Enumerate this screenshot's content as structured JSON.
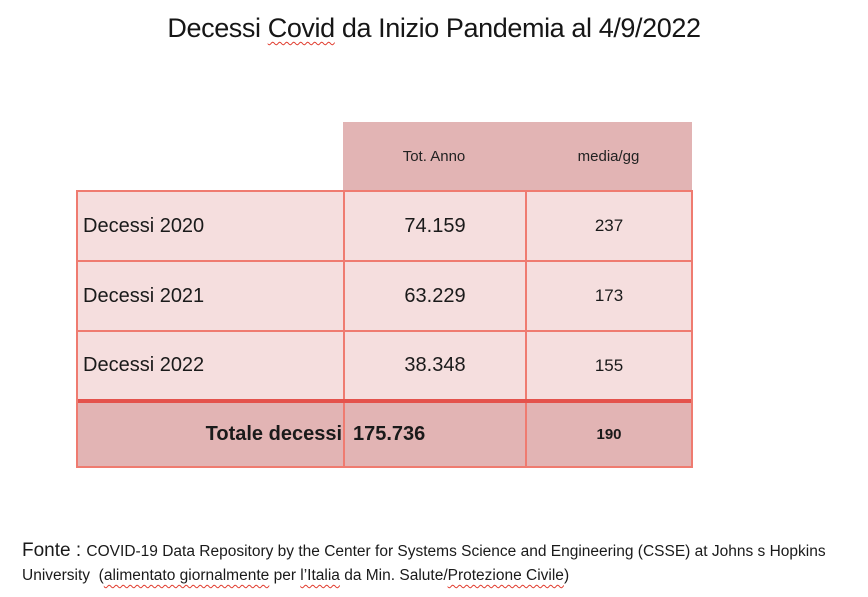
{
  "title": {
    "prefix": "Decessi ",
    "misspelled": "Covid",
    "suffix": " da Inizio Pandemia al 4/9/2022"
  },
  "table": {
    "column_headers": [
      "Tot. Anno",
      "media/gg"
    ],
    "rows": [
      {
        "label": "Decessi 2020",
        "tot_anno": "74.159",
        "media_gg": "237"
      },
      {
        "label": "Decessi 2021",
        "tot_anno": "63.229",
        "media_gg": "173"
      },
      {
        "label": "Decessi 2022",
        "tot_anno": "38.348",
        "media_gg": "155"
      }
    ],
    "total_row": {
      "label": "Totale decessi",
      "tot_anno": "175.736",
      "media_gg": "190"
    }
  },
  "footer": {
    "label": "Fonte : ",
    "seg_line1": "COVID-19 Data Repository by the Center for Systems Science and Engineering (CSSE) at Johns s Hopkins",
    "seg_line2_start": "University  (",
    "wavy1": "alimentato giornalmente",
    "seg2": " per ",
    "wavy2": "l’Italia",
    "seg3": " da Min. Salute/",
    "wavy3": "Protezione Civile",
    "seg4": ")"
  },
  "colors": {
    "header_bg": "#e2b4b4",
    "row_bg": "#f5dede",
    "border": "#ef7b70",
    "thick_border": "#e4524c",
    "squiggle": "#e03a2c",
    "text": "#1a1a1a"
  },
  "chart_data": {
    "type": "table",
    "title": "Decessi Covid da Inizio Pandemia al 4/9/2022",
    "columns": [
      "",
      "Tot. Anno",
      "media/gg"
    ],
    "rows": [
      [
        "Decessi 2020",
        "74.159",
        "237"
      ],
      [
        "Decessi 2021",
        "63.229",
        "173"
      ],
      [
        "Decessi 2022",
        "38.348",
        "155"
      ],
      [
        "Totale decessi",
        "175.736",
        "190"
      ]
    ],
    "source": "Fonte : COVID-19 Data Repository by the Center for Systems Science and Engineering (CSSE) at Johns s Hopkins University  (alimentato giornalmente per l’Italia da Min. Salute/Protezione Civile)"
  }
}
